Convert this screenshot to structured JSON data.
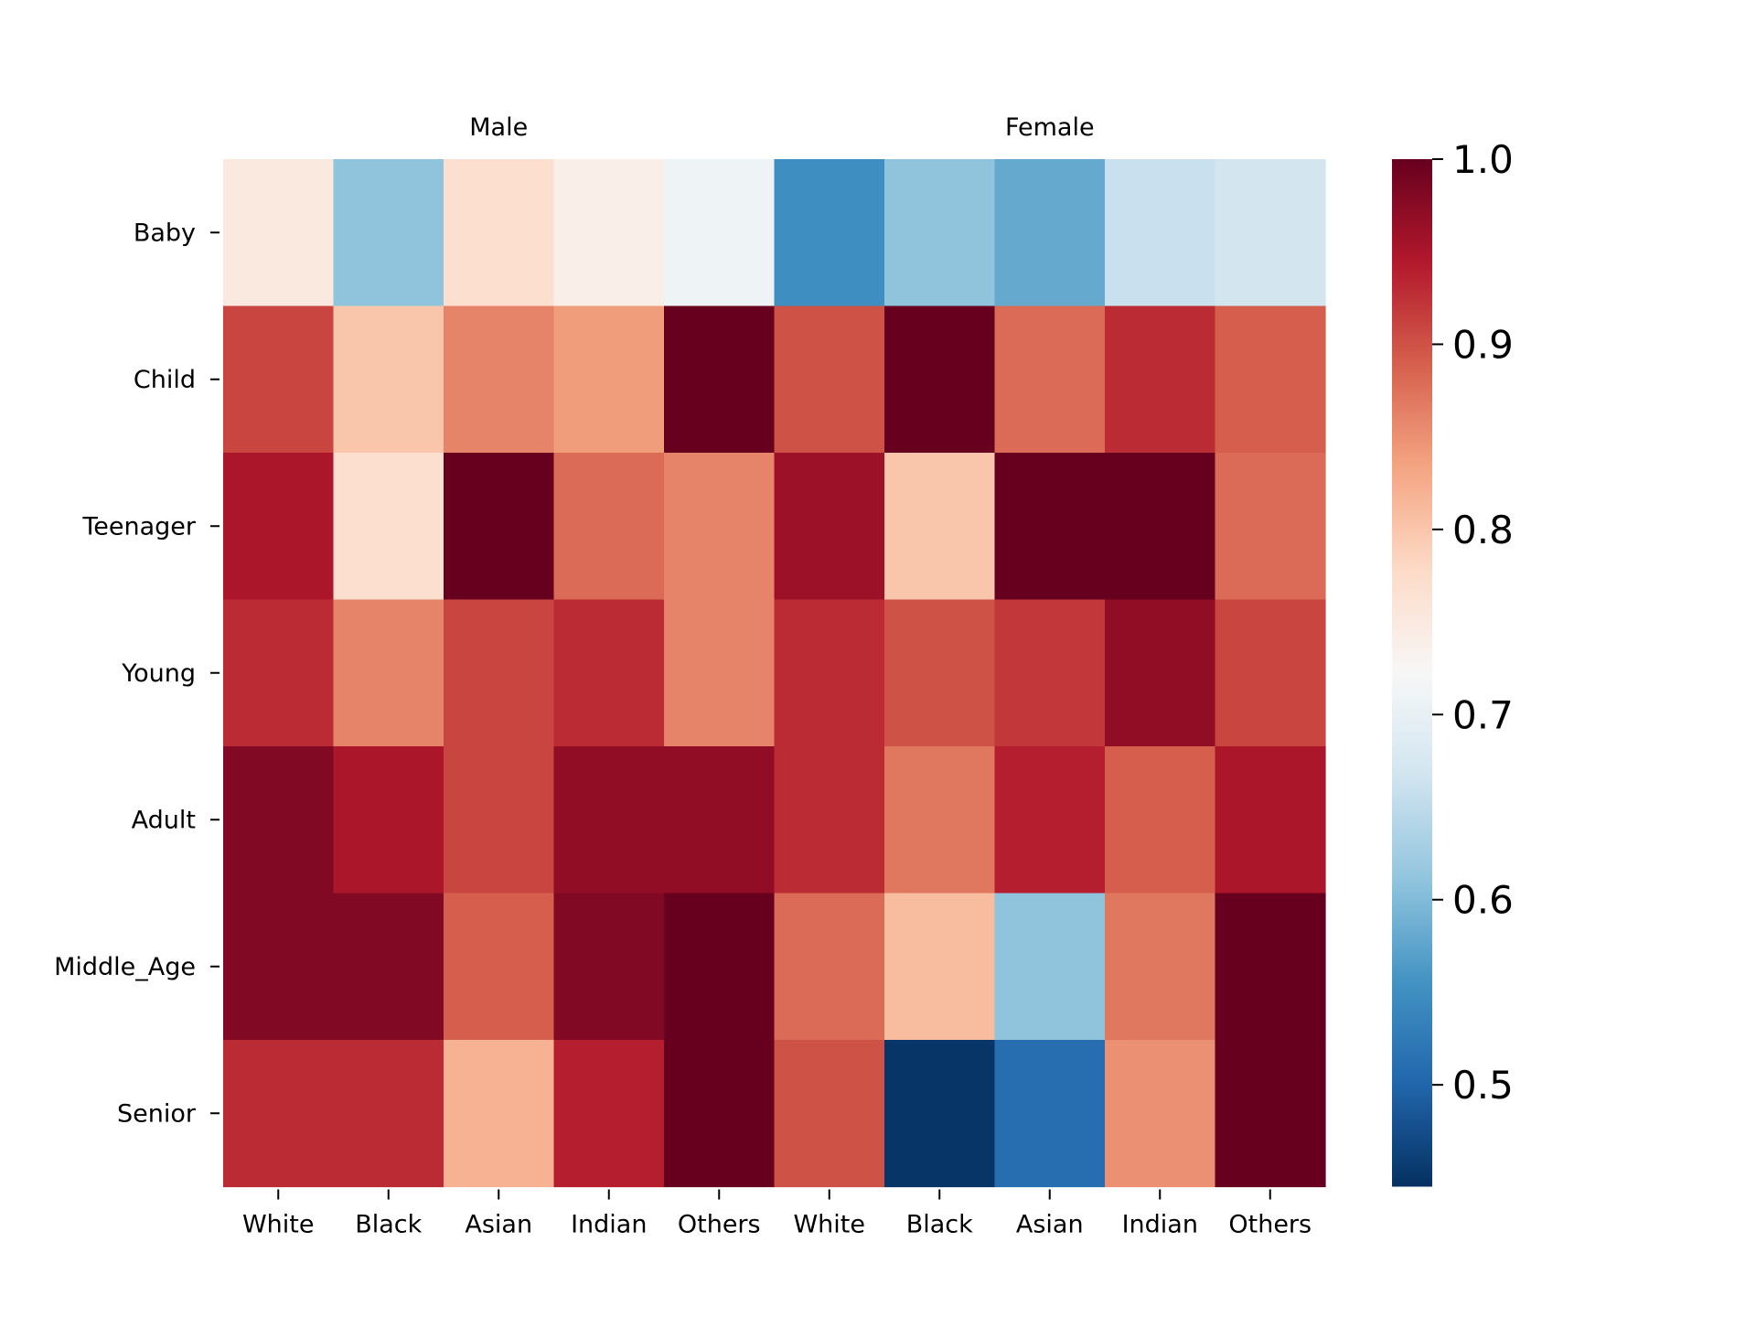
{
  "chart_data": {
    "type": "heatmap",
    "group_labels": [
      "Male",
      "Female"
    ],
    "x_categories": [
      "White",
      "Black",
      "Asian",
      "Indian",
      "Others",
      "White",
      "Black",
      "Asian",
      "Indian",
      "Others"
    ],
    "y_categories": [
      "Baby",
      "Child",
      "Teenager",
      "Young",
      "Adult",
      "Middle_Age",
      "Senior"
    ],
    "values": [
      [
        0.75,
        0.61,
        0.77,
        0.74,
        0.71,
        0.55,
        0.61,
        0.58,
        0.66,
        0.67
      ],
      [
        0.91,
        0.8,
        0.86,
        0.84,
        1.0,
        0.9,
        1.0,
        0.88,
        0.93,
        0.89
      ],
      [
        0.95,
        0.77,
        1.0,
        0.88,
        0.86,
        0.96,
        0.8,
        1.0,
        1.0,
        0.88
      ],
      [
        0.93,
        0.86,
        0.91,
        0.93,
        0.86,
        0.93,
        0.9,
        0.92,
        0.97,
        0.91
      ],
      [
        0.98,
        0.95,
        0.91,
        0.97,
        0.97,
        0.93,
        0.87,
        0.94,
        0.89,
        0.95
      ],
      [
        0.98,
        0.98,
        0.89,
        0.98,
        1.0,
        0.88,
        0.81,
        0.61,
        0.87,
        1.0
      ],
      [
        0.93,
        0.93,
        0.82,
        0.94,
        1.0,
        0.9,
        0.45,
        0.51,
        0.85,
        1.0
      ]
    ],
    "colormap": "RdBu_r",
    "colorbar": {
      "range": [
        0.445,
        1.0
      ],
      "ticks": [
        "0.5",
        "0.6",
        "0.7",
        "0.8",
        "0.9",
        "1.0"
      ]
    },
    "legend": "none",
    "grid": false
  }
}
